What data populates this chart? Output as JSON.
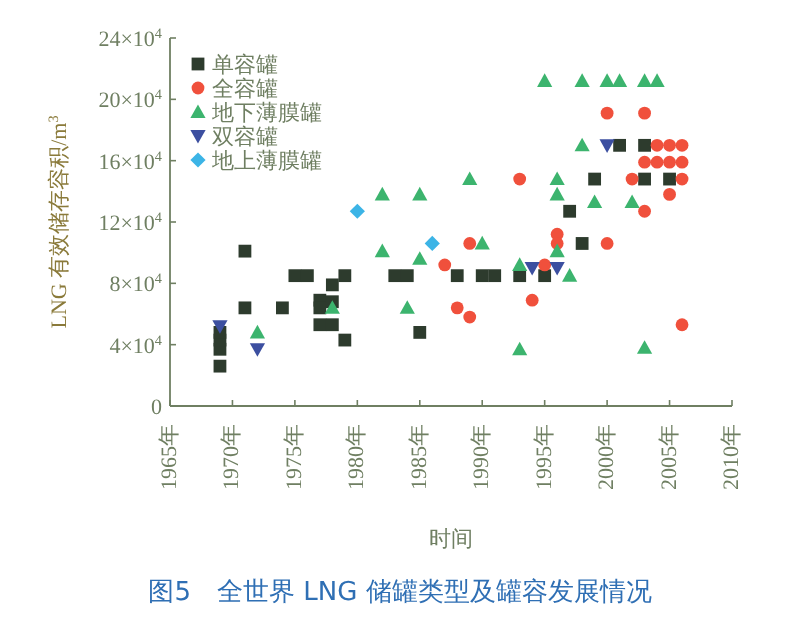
{
  "chart_data": {
    "type": "scatter",
    "title": "图5　全世界 LNG 储罐类型及罐容发展情况",
    "xlabel": "时间",
    "ylabel": "LNG 有效储存容积/m$^{3}$",
    "legend": "top left",
    "grid": false,
    "xlim": [
      1965,
      2010
    ],
    "ylim": [
      0,
      240000
    ],
    "xticks": [
      {
        "value": 1965,
        "label": "1965年"
      },
      {
        "value": 1970,
        "label": "1970年"
      },
      {
        "value": 1975,
        "label": "1975年"
      },
      {
        "value": 1980,
        "label": "1980年"
      },
      {
        "value": 1985,
        "label": "1985年"
      },
      {
        "value": 1990,
        "label": "1990年"
      },
      {
        "value": 1995,
        "label": "1995年"
      },
      {
        "value": 2000,
        "label": "2000年"
      },
      {
        "value": 2005,
        "label": "2005年"
      },
      {
        "value": 2010,
        "label": "2010年"
      }
    ],
    "yticks": [
      0,
      {
        "value": 40000,
        "label": "4×10$^{4}$"
      },
      {
        "value": 80000,
        "label": "8×10$^{4}$"
      },
      {
        "value": 120000,
        "label": "12×10$^{4}$"
      },
      {
        "value": 160000,
        "label": "16×10$^{4}$"
      },
      {
        "value": 200000,
        "label": "20×10$^{4}$"
      },
      {
        "value": 240000,
        "label": "24×10$^{4}$"
      }
    ],
    "series": [
      {
        "name": "单容罐",
        "color": "#2d3b2d",
        "marker": "square",
        "x": [
          1969,
          1969,
          1969,
          1969,
          1971,
          1971,
          1974,
          1975,
          1976,
          1977,
          1977,
          1977,
          1978,
          1978,
          1978,
          1979,
          1979,
          1983,
          1984,
          1985,
          1988,
          1990,
          1991,
          1993,
          1995,
          1997,
          1998,
          1999,
          2001,
          2003,
          2003,
          2005
        ],
        "values": [
          26000,
          37000,
          43000,
          48000,
          101000,
          64000,
          64000,
          85000,
          85000,
          69000,
          64000,
          53000,
          79000,
          68000,
          53000,
          85000,
          43000,
          85000,
          85000,
          48000,
          85000,
          85000,
          85000,
          85000,
          85000,
          127000,
          106000,
          148000,
          170000,
          170000,
          148000,
          148000
        ]
      },
      {
        "name": "全容罐",
        "color": "#f0503c",
        "marker": "circle",
        "x": [
          1987,
          1988,
          1989,
          1989,
          1993,
          1994,
          1995,
          1996,
          1996,
          2000,
          2000,
          2002,
          2003,
          2003,
          2003,
          2004,
          2004,
          2005,
          2005,
          2005,
          2006,
          2006,
          2006,
          2006
        ],
        "values": [
          92000,
          64000,
          58000,
          106000,
          148000,
          69000,
          92000,
          112000,
          106000,
          191000,
          106000,
          148000,
          191000,
          159000,
          127000,
          170000,
          159000,
          170000,
          159000,
          138000,
          170000,
          159000,
          148000,
          53000
        ]
      },
      {
        "name": "地下薄膜罐",
        "color": "#3cb46e",
        "marker": "triangle",
        "x": [
          1972,
          1978,
          1982,
          1982,
          1984,
          1985,
          1985,
          1989,
          1990,
          1993,
          1993,
          1995,
          1996,
          1996,
          1996,
          1997,
          1998,
          1998,
          1999,
          2000,
          2001,
          2002,
          2003,
          2003,
          2004
        ],
        "values": [
          48000,
          64000,
          138000,
          101000,
          64000,
          138000,
          96000,
          148000,
          106000,
          92000,
          37000,
          212000,
          148000,
          138000,
          101000,
          85000,
          212000,
          170000,
          133000,
          212000,
          212000,
          133000,
          212000,
          38000,
          212000
        ]
      },
      {
        "name": "双容罐",
        "color": "#3c4fa0",
        "marker": "triangle-down",
        "x": [
          1969,
          1972,
          1994,
          1996,
          2000
        ],
        "values": [
          52000,
          37000,
          90000,
          90000,
          170000
        ]
      },
      {
        "name": "地上薄膜罐",
        "color": "#3cb4e6",
        "marker": "diamond",
        "x": [
          1980,
          1986
        ],
        "values": [
          127000,
          106000
        ]
      }
    ]
  }
}
